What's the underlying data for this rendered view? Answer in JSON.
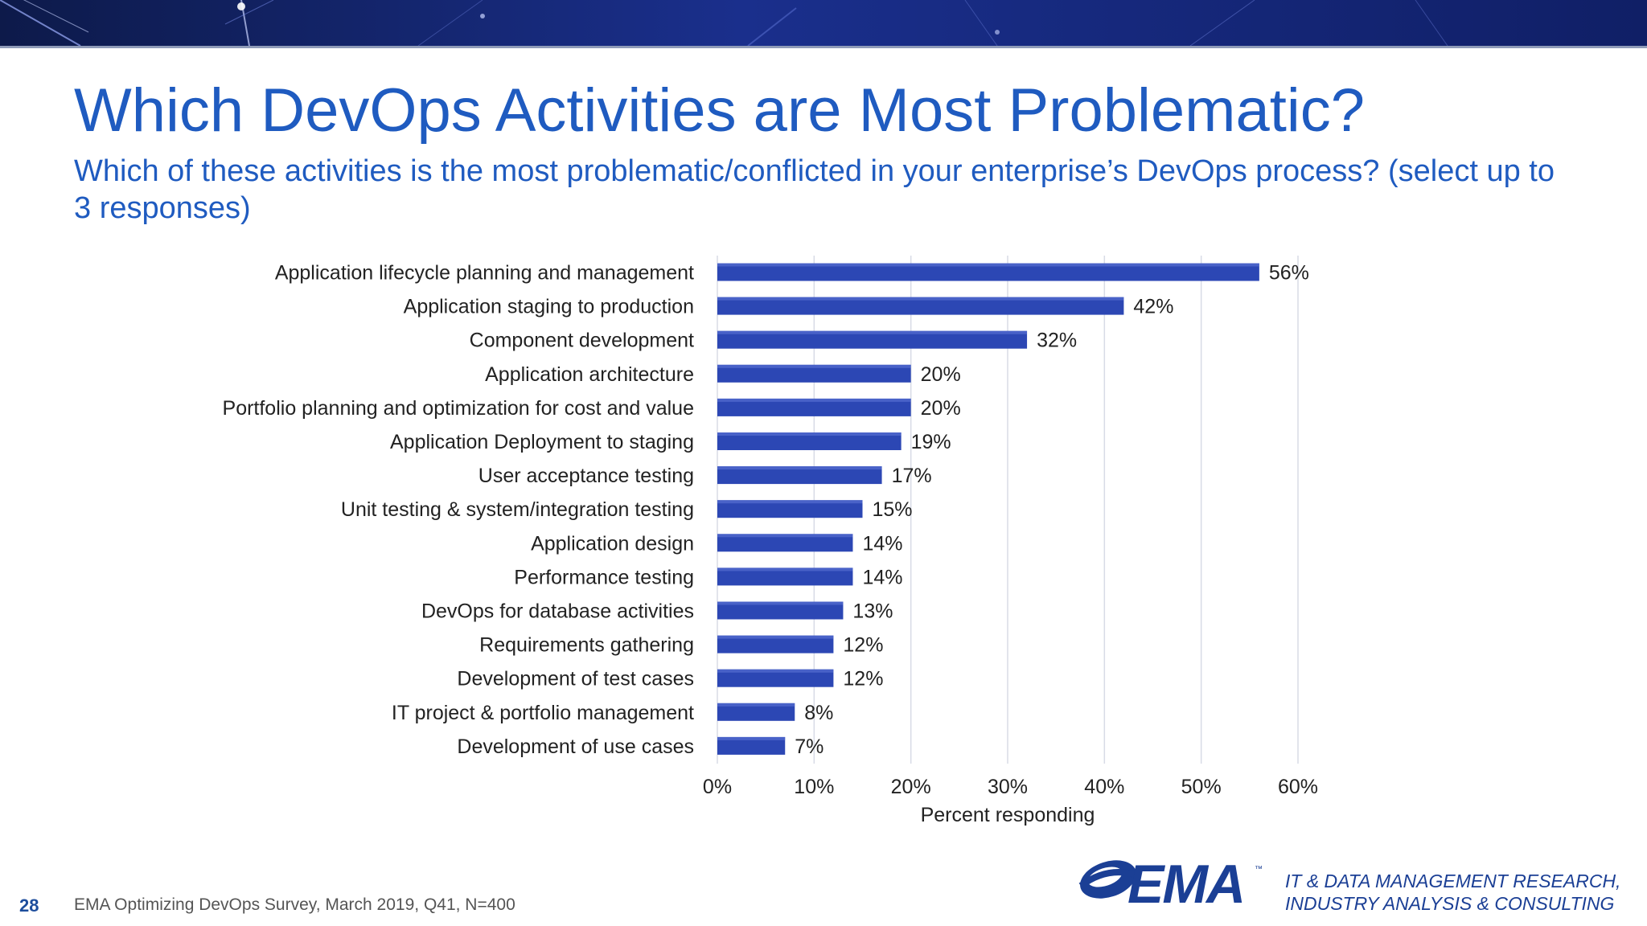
{
  "title": "Which DevOps Activities are Most Problematic?",
  "subtitle": "Which of these activities is the most problematic/conflicted in your enterprise’s DevOps process? (select up to 3 responses)",
  "colors": {
    "bar": "#2c47b4",
    "bar_highlight": "#5d75d6",
    "title": "#1f5bc0",
    "gridline": "#d8dbe6",
    "brand": "#1b3f95"
  },
  "chart_data": {
    "type": "bar",
    "orientation": "horizontal",
    "categories": [
      "Application lifecycle planning and management",
      "Application staging to production",
      "Component development",
      "Application architecture",
      "Portfolio planning and optimization for cost and value",
      "Application Deployment to staging",
      "User acceptance testing",
      "Unit testing & system/integration testing",
      "Application design",
      "Performance testing",
      "DevOps for database activities",
      "Requirements gathering",
      "Development of test cases",
      "IT project & portfolio management",
      "Development of use cases"
    ],
    "values": [
      56,
      42,
      32,
      20,
      20,
      19,
      17,
      15,
      14,
      14,
      13,
      12,
      12,
      8,
      7
    ],
    "value_labels": [
      "56%",
      "42%",
      "32%",
      "20%",
      "20%",
      "19%",
      "17%",
      "15%",
      "14%",
      "14%",
      "13%",
      "12%",
      "12%",
      "8%",
      "7%"
    ],
    "xlim": [
      0,
      60
    ],
    "xticks": [
      0,
      10,
      20,
      30,
      40,
      50,
      60
    ],
    "xtick_labels": [
      "0%",
      "10%",
      "20%",
      "30%",
      "40%",
      "50%",
      "60%"
    ],
    "xlabel": "Percent responding",
    "ylabel": "",
    "grid": "vertical",
    "legend": "none"
  },
  "footer": {
    "page_number": "28",
    "source": "EMA  Optimizing DevOps Survey, March 2019, Q41, N=400"
  },
  "brand": {
    "wordmark": "EMA",
    "trademark": "™",
    "tagline_line1": "IT & DATA MANAGEMENT RESEARCH,",
    "tagline_line2": "INDUSTRY ANALYSIS & CONSULTING"
  }
}
